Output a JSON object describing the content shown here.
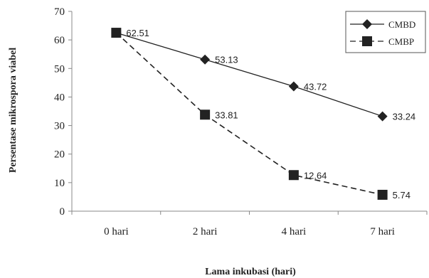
{
  "chart_data": {
    "type": "line",
    "categories": [
      "0 hari",
      "2 hari",
      "4 hari",
      "7 hari"
    ],
    "series": [
      {
        "name": "CMBD",
        "values": [
          62.51,
          53.13,
          43.72,
          33.24
        ],
        "marker": "diamond",
        "line_style": "solid",
        "show_labels": false
      },
      {
        "name": "CMBP",
        "values": [
          62.51,
          33.81,
          12.64,
          5.74
        ],
        "marker": "square",
        "line_style": "dashed",
        "show_labels": true
      }
    ],
    "data_labels": [
      "62.51",
      "53.13",
      "43.72",
      "33.24",
      "33.81",
      "12.64",
      "5.74"
    ],
    "xlabel": "Lama inkubasi (hari)",
    "ylabel": "Persentase mikrospora viabel",
    "ylim": [
      0,
      70
    ],
    "yticks": [
      "0",
      "10",
      "20",
      "30",
      "40",
      "50",
      "60",
      "70"
    ],
    "grid": false,
    "legend_position": "top-right",
    "colors": {
      "line": "#222222",
      "marker": "#222222",
      "axis": "#888888",
      "legend_border": "#555555"
    }
  }
}
